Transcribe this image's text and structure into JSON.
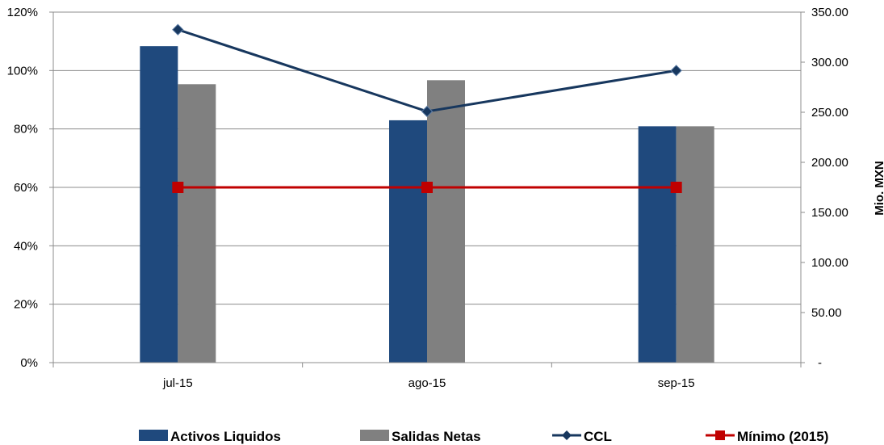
{
  "chart_data": {
    "type": "bar",
    "categories": [
      "jul-15",
      "ago-15",
      "sep-15"
    ],
    "series": [
      {
        "name": "Activos Liquidos",
        "type": "bar",
        "axis": "right",
        "values": [
          316,
          242,
          236
        ],
        "color": "#1f497d"
      },
      {
        "name": "Salidas Netas",
        "type": "bar",
        "axis": "right",
        "values": [
          278,
          282,
          236
        ],
        "color": "#808080"
      },
      {
        "name": "CCL",
        "type": "line",
        "axis": "left",
        "values": [
          1.14,
          0.86,
          1.0
        ],
        "color": "#17375e",
        "marker": "diamond"
      },
      {
        "name": "Mínimo (2015)",
        "type": "line",
        "axis": "left",
        "values": [
          0.6,
          0.6,
          0.6
        ],
        "color": "#c00000",
        "marker": "square"
      }
    ],
    "y_left": {
      "ylim": [
        0,
        1.2
      ],
      "ticks": [
        "0%",
        "20%",
        "40%",
        "60%",
        "80%",
        "100%",
        "120%"
      ]
    },
    "y_right": {
      "ylim": [
        0,
        350
      ],
      "ticks": [
        "-",
        "50.00",
        "100.00",
        "150.00",
        "200.00",
        "250.00",
        "300.00",
        "350.00"
      ],
      "label": "Mio. MXN"
    },
    "grid": true,
    "legend": "bottom"
  }
}
